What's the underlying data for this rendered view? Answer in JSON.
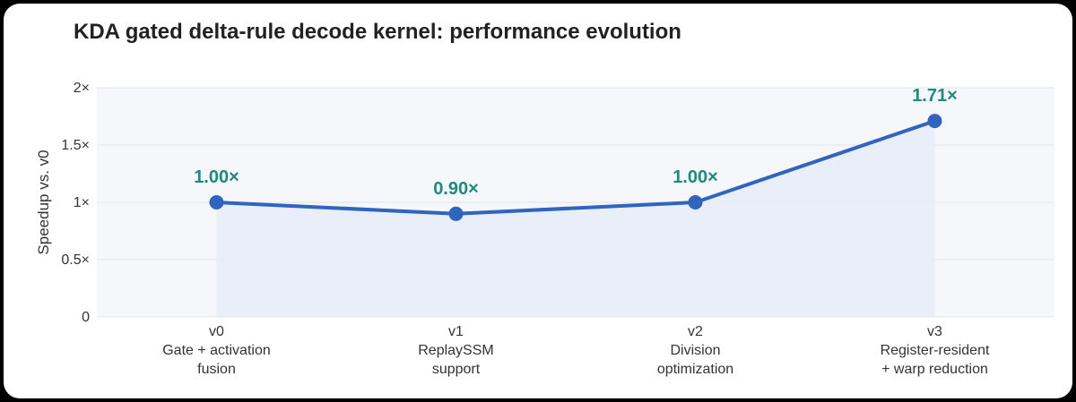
{
  "chart_data": {
    "type": "line",
    "title": "KDA gated delta-rule decode kernel: performance evolution",
    "ylabel": "Speedup vs. v0",
    "xlabel": "",
    "ylim": [
      0,
      2
    ],
    "yticks": [
      {
        "value": 0,
        "label": "0"
      },
      {
        "value": 0.5,
        "label": "0.5×"
      },
      {
        "value": 1,
        "label": "1×"
      },
      {
        "value": 1.5,
        "label": "1.5×"
      },
      {
        "value": 2,
        "label": "2×"
      }
    ],
    "categories": [
      {
        "version": "v0",
        "desc": [
          "Gate + activation",
          "fusion"
        ]
      },
      {
        "version": "v1",
        "desc": [
          "ReplaySSM",
          "support"
        ]
      },
      {
        "version": "v2",
        "desc": [
          "Division",
          "optimization"
        ]
      },
      {
        "version": "v3",
        "desc": [
          "Register-resident",
          "+ warp reduction"
        ]
      }
    ],
    "series": [
      {
        "values": [
          1.0,
          0.9,
          1.0,
          1.71
        ],
        "labels": [
          "1.00×",
          "0.90×",
          "1.00×",
          "1.71×"
        ]
      }
    ],
    "grid": true,
    "legend": "none",
    "colors": {
      "line": "#2f64bf",
      "marker": "#2f64bf",
      "label": "#1d8a80",
      "area": "#e9ecf8",
      "plot_bg": "#f6f7fa",
      "grid": "#e2e4e9",
      "text": "#333333"
    }
  }
}
